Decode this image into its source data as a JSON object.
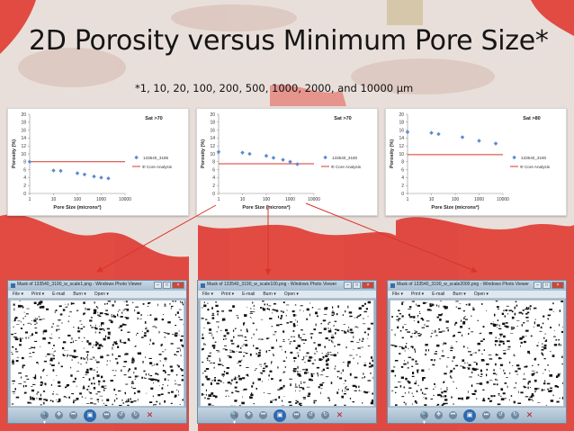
{
  "slide": {
    "title": "2D Porosity versus Minimum Pore Size*",
    "footnote": "*1, 10, 20, 100, 200, 500, 1000, 2000, and 10000 µm"
  },
  "colors": {
    "marker": "#5b8bd0",
    "core_line": "#d9342b",
    "background_red": "#e0423a"
  },
  "chart_data": [
    {
      "type": "scatter",
      "title": "Sat >70",
      "xlabel": "Pore Size (microns²)",
      "ylabel": "Porosity (%)",
      "xscale": "log",
      "xlim": [
        1,
        10000
      ],
      "ylim": [
        0,
        20
      ],
      "xticks": [
        1,
        10,
        100,
        1000,
        10000
      ],
      "yticks": [
        0,
        2,
        4,
        6,
        8,
        10,
        12,
        14,
        16,
        18,
        20
      ],
      "legend_position": "right",
      "series": [
        {
          "name": "133540_3185",
          "kind": "scatter",
          "x": [
            1,
            10,
            20,
            100,
            200,
            500,
            1000,
            2000
          ],
          "y": [
            8.0,
            5.8,
            5.7,
            5.1,
            4.8,
            4.3,
            4.0,
            3.8
          ]
        },
        {
          "name": "Φ Core Analysis",
          "kind": "hline",
          "y": 8.0
        }
      ]
    },
    {
      "type": "scatter",
      "title": "Sat >70",
      "xlabel": "Pore Size (microns²)",
      "ylabel": "Porosity (%)",
      "xscale": "log",
      "xlim": [
        1,
        10000
      ],
      "ylim": [
        0,
        20
      ],
      "xticks": [
        1,
        10,
        100,
        1000,
        10000
      ],
      "yticks": [
        0,
        2,
        4,
        6,
        8,
        10,
        12,
        14,
        16,
        18,
        20
      ],
      "legend_position": "right",
      "series": [
        {
          "name": "133540_3180",
          "kind": "scatter",
          "x": [
            1,
            10,
            20,
            100,
            200,
            500,
            1000,
            2000
          ],
          "y": [
            10.5,
            10.3,
            10.0,
            9.5,
            9.0,
            8.5,
            8.0,
            7.4
          ]
        },
        {
          "name": "Φ Core Analysis",
          "kind": "hline",
          "y": 7.5
        }
      ]
    },
    {
      "type": "scatter",
      "title": "Sat >80",
      "xlabel": "Pore Size (microns²)",
      "ylabel": "Porosity (%)",
      "xscale": "log",
      "xlim": [
        1,
        10000
      ],
      "ylim": [
        0,
        20
      ],
      "xticks": [
        1,
        10,
        100,
        1000,
        10000
      ],
      "yticks": [
        0,
        2,
        4,
        6,
        8,
        10,
        12,
        14,
        16,
        18,
        20
      ],
      "legend_position": "right",
      "series": [
        {
          "name": "133540_3190",
          "kind": "scatter",
          "x": [
            1,
            10,
            20,
            200,
            1000,
            5000
          ],
          "y": [
            15.5,
            15.3,
            15.0,
            14.2,
            13.3,
            12.6
          ]
        },
        {
          "name": "Φ Core Analysis",
          "kind": "hline",
          "y": 9.8
        }
      ]
    }
  ],
  "viewers": [
    {
      "title": "Mask of 133540_3190_w_scale1.png - Windows Photo Viewer"
    },
    {
      "title": "Mask of 133540_3190_w_scale100.png - Windows Photo Viewer"
    },
    {
      "title": "Mask of 133540_3190_w_scale2000.png - Windows Photo Viewer"
    }
  ],
  "viewer_ui": {
    "menu": [
      "File ▾",
      "Print ▾",
      "E-mail",
      "Burn ▾",
      "Open ▾"
    ],
    "window_buttons": [
      "–",
      "□",
      "×"
    ],
    "controls": [
      "🔍▾",
      "✥",
      "⏮",
      "▣",
      "⏭",
      "↺",
      "↻",
      "✕"
    ]
  }
}
